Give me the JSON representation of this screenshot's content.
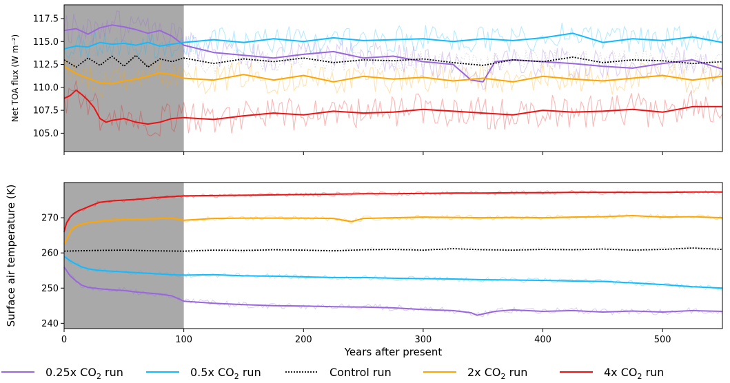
{
  "chart_data": [
    {
      "type": "line",
      "xlabel": "",
      "ylabel": "Net TOA flux (W m⁻²)",
      "xlim": [
        0,
        550
      ],
      "ylim": [
        103,
        119
      ],
      "x_ticks": [
        0,
        100,
        200,
        300,
        400,
        500
      ],
      "y_ticks": [
        105.0,
        107.5,
        110.0,
        112.5,
        115.0,
        117.5
      ],
      "y_tick_labels": [
        "105.0",
        "107.5",
        "110.0",
        "112.5",
        "115.0",
        "117.5"
      ],
      "shaded_region": [
        0,
        100
      ],
      "grid": false,
      "series": [
        {
          "key": "q",
          "x": [
            0,
            10,
            20,
            30,
            40,
            50,
            60,
            70,
            80,
            90,
            100,
            125,
            150,
            175,
            200,
            225,
            250,
            275,
            300,
            325,
            340,
            350,
            360,
            375,
            400,
            425,
            450,
            475,
            500,
            525,
            550
          ],
          "values": [
            116.2,
            116.4,
            115.8,
            116.5,
            116.8,
            116.6,
            116.3,
            115.9,
            116.2,
            115.6,
            114.6,
            113.8,
            113.5,
            113.2,
            113.6,
            113.9,
            113.2,
            113.4,
            112.8,
            112.5,
            110.8,
            110.6,
            112.8,
            113.0,
            112.8,
            112.6,
            112.3,
            112.1,
            112.6,
            113.0,
            112.0
          ]
        },
        {
          "key": "h",
          "x": [
            0,
            10,
            20,
            30,
            40,
            50,
            60,
            70,
            80,
            90,
            100,
            125,
            150,
            175,
            200,
            225,
            250,
            275,
            300,
            325,
            350,
            375,
            400,
            425,
            450,
            475,
            500,
            525,
            550
          ],
          "values": [
            114.2,
            114.5,
            114.4,
            114.9,
            114.7,
            114.8,
            114.6,
            114.9,
            114.5,
            114.7,
            114.9,
            115.2,
            114.9,
            115.3,
            115.0,
            115.4,
            115.1,
            115.2,
            115.3,
            115.0,
            115.3,
            115.1,
            115.4,
            115.9,
            114.9,
            115.3,
            115.1,
            115.5,
            114.9
          ]
        },
        {
          "key": "c",
          "x": [
            0,
            10,
            20,
            30,
            40,
            50,
            60,
            70,
            80,
            90,
            100,
            125,
            150,
            175,
            200,
            225,
            250,
            275,
            300,
            325,
            350,
            375,
            400,
            425,
            450,
            475,
            500,
            525,
            550
          ],
          "values": [
            113.0,
            112.2,
            113.2,
            112.4,
            113.4,
            112.3,
            113.5,
            112.2,
            113.1,
            112.8,
            113.2,
            112.6,
            113.1,
            112.8,
            113.2,
            112.7,
            113.0,
            112.9,
            113.1,
            112.7,
            112.4,
            113.0,
            112.8,
            113.3,
            112.7,
            113.0,
            112.9,
            112.6,
            112.8
          ]
        },
        {
          "key": "d",
          "x": [
            0,
            10,
            20,
            30,
            40,
            50,
            60,
            70,
            80,
            90,
            100,
            125,
            150,
            175,
            200,
            225,
            250,
            275,
            300,
            325,
            350,
            375,
            400,
            425,
            450,
            475,
            500,
            525,
            550
          ],
          "values": [
            112.3,
            111.5,
            111.0,
            110.5,
            110.4,
            110.7,
            110.9,
            111.2,
            111.6,
            111.4,
            111.0,
            110.8,
            111.4,
            110.8,
            111.3,
            110.6,
            111.2,
            110.9,
            111.1,
            110.7,
            111.0,
            110.6,
            111.2,
            110.9,
            110.7,
            111.0,
            111.3,
            110.8,
            111.2
          ]
        },
        {
          "key": "f",
          "x": [
            0,
            5,
            10,
            15,
            20,
            25,
            30,
            35,
            40,
            50,
            60,
            70,
            80,
            90,
            100,
            125,
            150,
            175,
            200,
            225,
            250,
            275,
            300,
            325,
            350,
            375,
            400,
            425,
            450,
            475,
            500,
            525,
            550
          ],
          "values": [
            108.8,
            109.1,
            109.7,
            109.2,
            108.6,
            107.8,
            106.6,
            106.2,
            106.4,
            106.6,
            106.2,
            106.0,
            106.2,
            106.6,
            106.7,
            106.5,
            106.9,
            107.2,
            107.0,
            107.4,
            107.2,
            107.3,
            107.6,
            107.4,
            107.2,
            107.0,
            107.5,
            107.3,
            107.4,
            107.6,
            107.3,
            107.9,
            107.9
          ]
        }
      ]
    },
    {
      "type": "line",
      "xlabel": "Years after present",
      "ylabel": "Surface air temperature (K)",
      "xlim": [
        0,
        550
      ],
      "ylim": [
        238.5,
        280
      ],
      "x_ticks": [
        0,
        100,
        200,
        300,
        400,
        500
      ],
      "x_tick_labels": [
        "0",
        "100",
        "200",
        "300",
        "400",
        "500"
      ],
      "y_ticks": [
        240,
        250,
        260,
        270
      ],
      "y_tick_labels": [
        "240",
        "250",
        "260",
        "270"
      ],
      "shaded_region": [
        0,
        100
      ],
      "grid": false,
      "series": [
        {
          "key": "q",
          "x": [
            0,
            5,
            10,
            15,
            20,
            30,
            40,
            50,
            60,
            70,
            80,
            90,
            100,
            125,
            150,
            175,
            200,
            225,
            250,
            275,
            300,
            325,
            340,
            345,
            360,
            375,
            400,
            425,
            450,
            475,
            500,
            525,
            550
          ],
          "values": [
            256.0,
            253.5,
            252.0,
            250.8,
            250.2,
            249.8,
            249.5,
            249.3,
            248.9,
            248.6,
            248.3,
            247.8,
            246.3,
            245.7,
            245.3,
            245.0,
            244.9,
            244.7,
            244.6,
            244.4,
            243.9,
            243.6,
            243.0,
            242.3,
            243.4,
            243.8,
            243.4,
            243.6,
            243.2,
            243.5,
            243.2,
            243.6,
            243.4
          ]
        },
        {
          "key": "h",
          "x": [
            0,
            5,
            10,
            15,
            20,
            30,
            40,
            50,
            60,
            70,
            80,
            90,
            100,
            125,
            150,
            175,
            200,
            225,
            250,
            275,
            300,
            325,
            350,
            375,
            400,
            425,
            450,
            475,
            500,
            525,
            550
          ],
          "values": [
            259.0,
            257.8,
            256.8,
            256.0,
            255.5,
            255.0,
            254.8,
            254.6,
            254.4,
            254.2,
            254.0,
            253.8,
            253.7,
            253.8,
            253.5,
            253.4,
            253.2,
            253.0,
            253.0,
            252.8,
            252.7,
            252.6,
            252.4,
            252.3,
            252.2,
            252.0,
            251.9,
            251.5,
            251.0,
            250.4,
            250.0
          ]
        },
        {
          "key": "c",
          "x": [
            0,
            25,
            50,
            75,
            100,
            125,
            150,
            175,
            200,
            225,
            250,
            275,
            300,
            325,
            350,
            375,
            400,
            425,
            450,
            475,
            500,
            525,
            550
          ],
          "values": [
            260.5,
            260.7,
            260.8,
            260.6,
            260.5,
            260.8,
            260.7,
            260.9,
            260.8,
            260.6,
            260.9,
            261.0,
            260.8,
            261.2,
            260.9,
            260.8,
            261.0,
            260.9,
            261.1,
            260.8,
            261.0,
            261.4,
            261.0
          ]
        },
        {
          "key": "d",
          "x": [
            0,
            3,
            6,
            10,
            15,
            20,
            30,
            40,
            50,
            60,
            70,
            80,
            90,
            100,
            125,
            150,
            175,
            200,
            225,
            240,
            250,
            275,
            300,
            325,
            350,
            375,
            400,
            425,
            450,
            475,
            500,
            525,
            550
          ],
          "values": [
            262.5,
            264.5,
            266.5,
            267.6,
            268.2,
            268.6,
            269.0,
            269.3,
            269.5,
            269.6,
            269.7,
            269.8,
            269.9,
            269.3,
            269.8,
            269.9,
            269.9,
            269.9,
            269.8,
            268.9,
            269.8,
            270.0,
            270.2,
            270.1,
            270.0,
            270.1,
            270.0,
            270.2,
            270.3,
            270.6,
            270.2,
            270.3,
            270.0
          ]
        },
        {
          "key": "f",
          "x": [
            0,
            2,
            5,
            8,
            12,
            18,
            25,
            30,
            40,
            50,
            60,
            70,
            80,
            90,
            100,
            125,
            150,
            175,
            200,
            225,
            250,
            275,
            300,
            325,
            350,
            375,
            400,
            425,
            450,
            475,
            500,
            525,
            550
          ],
          "values": [
            266.0,
            268.5,
            270.2,
            271.2,
            272.0,
            272.8,
            273.8,
            274.4,
            274.8,
            275.0,
            275.2,
            275.5,
            275.8,
            276.0,
            276.2,
            276.3,
            276.4,
            276.5,
            276.6,
            276.7,
            276.8,
            276.8,
            276.9,
            277.0,
            277.0,
            277.1,
            277.1,
            277.2,
            277.2,
            277.2,
            277.2,
            277.3,
            277.3
          ]
        }
      ]
    }
  ],
  "legend": {
    "placement": "bottom",
    "items": [
      {
        "key": "q",
        "prefix": "0.25x CO",
        "sub": "2",
        "suffix": " run",
        "color": "#9966dd",
        "style": "solid"
      },
      {
        "key": "h",
        "prefix": "0.5x CO",
        "sub": "2",
        "suffix": " run",
        "color": "#11bbff",
        "style": "solid"
      },
      {
        "key": "c",
        "prefix": "Control run",
        "sub": "",
        "suffix": "",
        "color": "#000000",
        "style": "dotted"
      },
      {
        "key": "d",
        "prefix": "2x CO",
        "sub": "2",
        "suffix": " run",
        "color": "#ffa500",
        "style": "solid"
      },
      {
        "key": "f",
        "prefix": "4x CO",
        "sub": "2",
        "suffix": " run",
        "color": "#ee1111",
        "style": "solid"
      }
    ]
  },
  "colors": {
    "shade": "#a9a9a9",
    "control_raw": "#a0a0a0"
  }
}
